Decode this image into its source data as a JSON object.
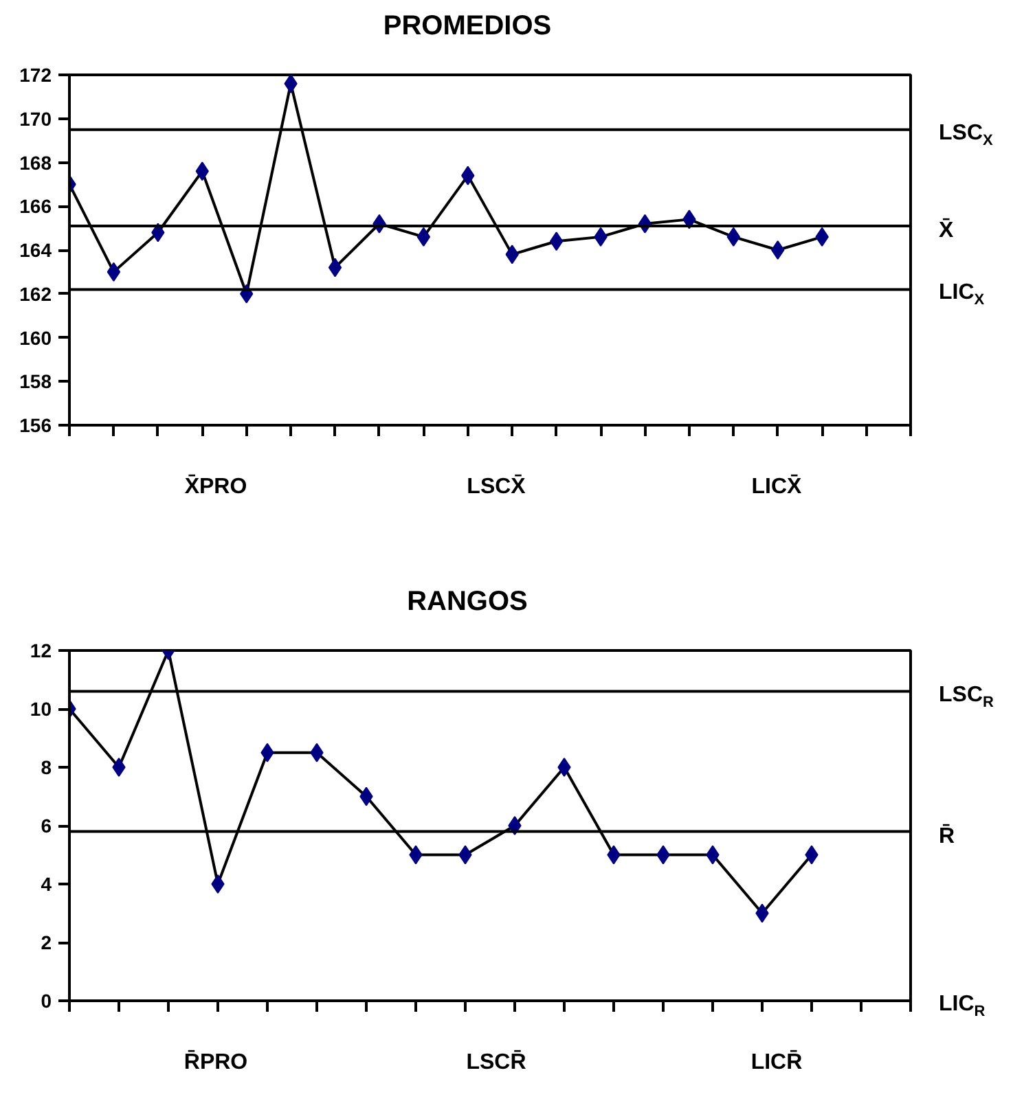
{
  "chart_data": [
    {
      "type": "line",
      "title": "PROMEDIOS",
      "categories": [
        null,
        null,
        null,
        null,
        null,
        null,
        null,
        null,
        null,
        null,
        null,
        null,
        null,
        null,
        null,
        null,
        null,
        null,
        null,
        null
      ],
      "series": [
        {
          "color": "#000080",
          "values": [
            167.0,
            163.0,
            164.8,
            167.6,
            162.0,
            171.6,
            163.2,
            165.2,
            164.6,
            167.4,
            163.8,
            164.4,
            164.6,
            165.2,
            165.4,
            164.6,
            164.0,
            164.6,
            null,
            null
          ]
        }
      ],
      "marker": "diamond",
      "grid": false,
      "ylim": [
        156,
        172
      ],
      "yticks": [
        156,
        158,
        160,
        162,
        164,
        166,
        168,
        170,
        172
      ],
      "ref_lines": [
        {
          "axis": "y",
          "value": 169.5,
          "label": "LSC$_{X}$",
          "color": "#000000"
        },
        {
          "axis": "y",
          "value": 165.1,
          "label": "X̄",
          "color": "#000000"
        },
        {
          "axis": "y",
          "value": 162.2,
          "label": "LIC$_{X}$",
          "color": "#000000"
        }
      ],
      "annotations": [
        "X̄PRO",
        "LSCX̄",
        "LICX̄"
      ]
    },
    {
      "type": "line",
      "title": "RANGOS",
      "categories": [
        null,
        null,
        null,
        null,
        null,
        null,
        null,
        null,
        null,
        null,
        null,
        null,
        null,
        null,
        null,
        null,
        null,
        null
      ],
      "series": [
        {
          "color": "#000080",
          "values": [
            10,
            8,
            12,
            4,
            8.5,
            8.5,
            7,
            5,
            5,
            6,
            8,
            5,
            5,
            5,
            3,
            5,
            null,
            null
          ]
        }
      ],
      "marker": "diamond",
      "grid": false,
      "ylim": [
        0,
        12
      ],
      "yticks": [
        0,
        2,
        4,
        6,
        8,
        10,
        12
      ],
      "ref_lines": [
        {
          "axis": "y",
          "value": 10.6,
          "label": "LSC$_{R}$",
          "color": "#000000"
        },
        {
          "axis": "y",
          "value": 5.8,
          "label": "R̄",
          "color": "#000000"
        },
        {
          "axis": "y",
          "value": 0,
          "label": "LIC$_{R}$",
          "color": "#000000"
        }
      ],
      "annotations": [
        "R̄PRO",
        "LSCR̄",
        "LICR̄"
      ]
    }
  ]
}
